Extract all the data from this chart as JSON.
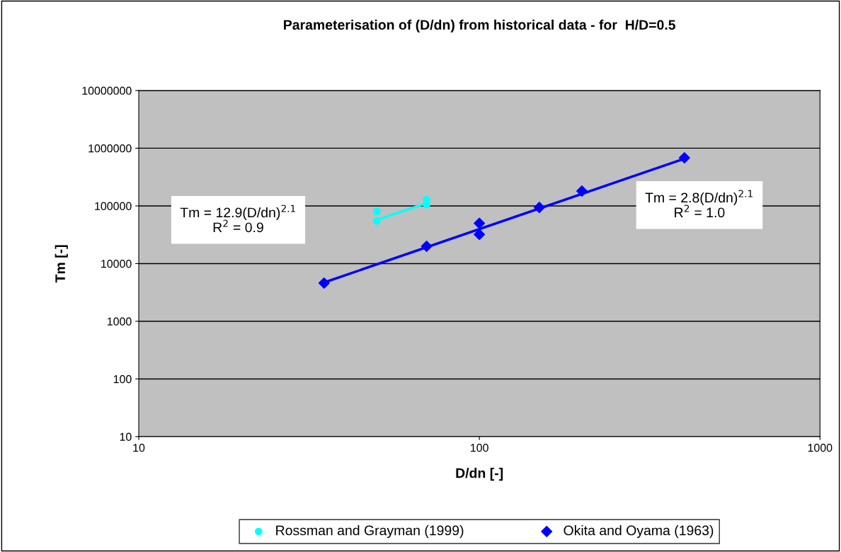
{
  "chart_data": {
    "type": "scatter",
    "title": "Parameterisation of (D/dn) from historical data - for  H/D=0.5",
    "xlabel": "D/dn [-]",
    "ylabel": "Tm [-]",
    "log": "xy",
    "xlim": [
      10,
      1000
    ],
    "xticks": [
      10,
      100,
      1000
    ],
    "ylim": [
      10,
      10000000
    ],
    "yticks": [
      10,
      100,
      1000,
      10000,
      100000,
      1000000,
      10000000
    ],
    "grid": "y",
    "legend": "bottom",
    "series": [
      {
        "name": "Rossman and Grayman (1999)",
        "marker": "circle",
        "color": "#00ffff",
        "x": [
          50,
          50,
          70,
          70
        ],
        "values": [
          80000,
          55000,
          128000,
          106000
        ]
      },
      {
        "name": "Okita and Oyama (1963)",
        "marker": "diamond",
        "color": "#0000ff",
        "x": [
          35,
          70,
          100,
          100,
          150,
          200,
          400
        ],
        "values": [
          4600,
          20000,
          50000,
          32000,
          94000,
          181000,
          680000
        ]
      },
      {
        "type": "line",
        "color": "#00ffff",
        "x": [
          50,
          70
        ],
        "values": [
          57000,
          112000
        ]
      },
      {
        "type": "line",
        "color": "#0000ff",
        "x": [
          35,
          400
        ],
        "values": [
          4700,
          660000
        ]
      }
    ],
    "annotations": [
      "Tm = 12.9(D/dn)$^{2.1}$\nR$^{2}$ = 0.9",
      "Tm = 2.8(D/dn)$^{2.1}$\nR$^{2}$ = 1.0"
    ]
  }
}
